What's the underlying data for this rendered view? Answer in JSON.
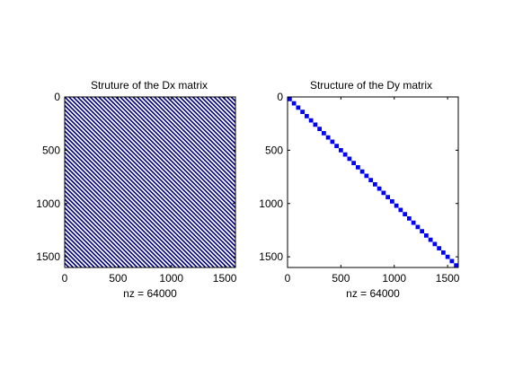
{
  "chart_data": [
    {
      "type": "spy",
      "title": "Struture of the Dx matrix",
      "xlabel": "nz = 64000",
      "ylabel": "",
      "xlim": [
        0,
        1600
      ],
      "ylim": [
        0,
        1600
      ],
      "y_reversed": true,
      "xticks": [
        0,
        500,
        1000,
        1500
      ],
      "yticks": [
        0,
        500,
        1000,
        1500
      ],
      "xtick_labels": [
        "0",
        "500",
        "1000",
        "1500"
      ],
      "ytick_labels": [
        "0",
        "500",
        "1000",
        "1500"
      ],
      "pattern": "diagonal bands",
      "band_offsets": [
        -1560,
        -1520,
        -1480,
        -1440,
        -1400,
        -1360,
        -1320,
        -1280,
        -1240,
        -1200,
        -1160,
        -1120,
        -1080,
        -1040,
        -1000,
        -960,
        -920,
        -880,
        -840,
        -800,
        -760,
        -720,
        -680,
        -640,
        -600,
        -560,
        -520,
        -480,
        -440,
        -400,
        -360,
        -320,
        -280,
        -240,
        -200,
        -160,
        -120,
        -80,
        -40,
        0,
        40,
        80,
        120,
        160,
        200,
        240,
        280,
        320,
        360,
        400,
        440,
        480,
        520,
        560,
        600,
        640,
        680,
        720,
        760,
        800,
        840,
        880,
        920,
        960,
        1000,
        1040,
        1080,
        1120,
        1160,
        1200,
        1240,
        1280,
        1320,
        1360,
        1400,
        1440,
        1480,
        1520,
        1560
      ],
      "color": "#00007f"
    },
    {
      "type": "spy",
      "title": "Structure of the Dy matrix",
      "xlabel": "nz = 64000",
      "ylabel": "",
      "xlim": [
        0,
        1600
      ],
      "ylim": [
        0,
        1600
      ],
      "y_reversed": true,
      "xticks": [
        0,
        500,
        1000,
        1500
      ],
      "yticks": [
        0,
        500,
        1000,
        1500
      ],
      "xtick_labels": [
        "0",
        "500",
        "1000",
        "1500"
      ],
      "ytick_labels": [
        "0",
        "500",
        "1000",
        "1500"
      ],
      "pattern": "block diagonal",
      "block_size": 40,
      "block_count": 40,
      "color": "#0000ff"
    }
  ]
}
